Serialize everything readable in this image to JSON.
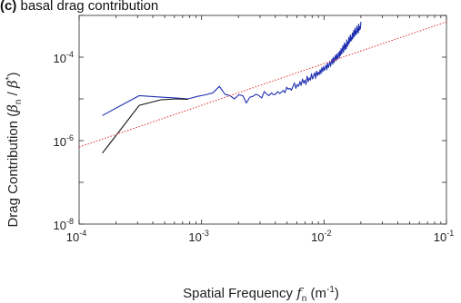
{
  "panel": {
    "title_letter": "(c)",
    "title_text": " basal drag contribution"
  },
  "chart_data": {
    "type": "line",
    "title": "(c) basal drag contribution",
    "xlabel": "Spatial Frequency f_n (m^-1)",
    "ylabel": "Drag Contribution (β_n / β*)",
    "xscale": "log",
    "yscale": "log",
    "xlim": [
      0.0001,
      0.1
    ],
    "ylim": [
      1e-08,
      0.001
    ],
    "grid": false,
    "legend": "none",
    "x_ticks": [
      {
        "mant": "10",
        "exp": "-4"
      },
      {
        "mant": "10",
        "exp": "-3"
      },
      {
        "mant": "10",
        "exp": "-2"
      },
      {
        "mant": "10",
        "exp": "-1"
      }
    ],
    "y_ticks": [
      {
        "mant": "10",
        "exp": "-8"
      },
      {
        "mant": "10",
        "exp": "-6"
      },
      {
        "mant": "10",
        "exp": "-4"
      }
    ],
    "series": [
      {
        "color": "#1f2fb0",
        "style": "solid",
        "x": [
          0.000155,
          0.00031,
          0.000465,
          0.00062,
          0.000775,
          0.00093,
          0.00108,
          0.00124,
          0.0014,
          0.00155,
          0.0017,
          0.00186,
          0.00201,
          0.00217,
          0.00232,
          0.00248,
          0.00263,
          0.00279,
          0.00294,
          0.0031,
          0.00325,
          0.00341,
          0.00356,
          0.00372,
          0.00387,
          0.00403,
          0.00418,
          0.00434,
          0.00449,
          0.00465,
          0.0048,
          0.00496,
          0.00511,
          0.00527,
          0.00542,
          0.00558,
          0.00573,
          0.00589,
          0.00604,
          0.0062,
          0.00635,
          0.00651,
          0.00666,
          0.00682,
          0.00697,
          0.00713,
          0.00728,
          0.00744,
          0.00759,
          0.00775,
          0.0079,
          0.00806,
          0.00821,
          0.00837,
          0.00852,
          0.00868,
          0.00883,
          0.00899,
          0.00914,
          0.0093,
          0.00945,
          0.00961,
          0.00976,
          0.00992,
          0.01007,
          0.01023,
          0.01038,
          0.01054,
          0.01069,
          0.01085,
          0.011,
          0.01116,
          0.01131,
          0.01147,
          0.01162,
          0.01178,
          0.01193,
          0.01209,
          0.01224,
          0.0124,
          0.01255,
          0.01271,
          0.01286,
          0.01302,
          0.01317,
          0.01333,
          0.01348,
          0.01364,
          0.01379,
          0.01395,
          0.0141,
          0.01426,
          0.01441,
          0.01457,
          0.01472,
          0.01488,
          0.01503,
          0.01519,
          0.01534,
          0.0155,
          0.01565,
          0.01581,
          0.01596,
          0.01612,
          0.01627,
          0.01643,
          0.01658,
          0.01674,
          0.01689,
          0.01705,
          0.0172,
          0.01736,
          0.01751,
          0.01767,
          0.01782,
          0.01798,
          0.01813,
          0.01829,
          0.01844,
          0.0186,
          0.01875,
          0.01891,
          0.01906,
          0.01922,
          0.01937,
          0.01953,
          0.01968,
          0.01984,
          0.02
        ],
        "y": [
          4e-06,
          1.2e-05,
          1.1e-05,
          1.05e-05,
          1e-05,
          1.15e-05,
          1.25e-05,
          1.4e-05,
          2e-05,
          1.3e-05,
          1.2e-05,
          1e-05,
          1.25e-05,
          1.2e-05,
          8e-06,
          1.1e-05,
          1.15e-05,
          1.3e-05,
          1.2e-05,
          1.05e-05,
          1.5e-05,
          1.3e-05,
          1.2e-05,
          1.4e-05,
          1.25e-05,
          1.3e-05,
          1.5e-05,
          1.35e-05,
          1.45e-05,
          1.6e-05,
          1.4e-05,
          1.9e-05,
          1.7e-05,
          1.8e-05,
          1.6e-05,
          2e-05,
          2.4e-05,
          1.8e-05,
          2.2e-05,
          2e-05,
          2.6e-05,
          2.1e-05,
          3e-05,
          2.4e-05,
          2.8e-05,
          2.2e-05,
          3.5e-05,
          2.6e-05,
          3.2e-05,
          2.8e-05,
          4e-05,
          3e-05,
          3.6e-05,
          4.2e-05,
          3.1e-05,
          4.6e-05,
          3.6e-05,
          4.4e-05,
          3.8e-05,
          5e-05,
          4e-05,
          5.6e-05,
          4.5e-05,
          6e-05,
          4.8e-05,
          5.5e-05,
          6.4e-05,
          5e-05,
          7.2e-05,
          5.6e-05,
          6.6e-05,
          8e-05,
          6e-05,
          7.6e-05,
          9e-05,
          6.8e-05,
          0.0001,
          7.4e-05,
          9.4e-05,
          0.00011,
          8.2e-05,
          0.00012,
          9e-05,
          0.000106,
          0.00013,
          9.6e-05,
          0.00014,
          0.00011,
          0.00016,
          0.00012,
          0.00015,
          0.00019,
          0.00013,
          0.00017,
          0.00022,
          0.00015,
          0.0002,
          0.00016,
          0.00026,
          0.00018,
          0.00023,
          0.0002,
          0.0003,
          0.00022,
          0.00026,
          0.00034,
          0.00024,
          0.0003,
          0.00026,
          0.00038,
          0.00028,
          0.00034,
          0.00044,
          0.00031,
          0.00038,
          0.0005,
          0.00034,
          0.00042,
          0.00036,
          0.00056,
          0.0004,
          0.00048,
          0.00038,
          0.00062,
          0.00044,
          0.00054,
          0.00046,
          0.0005,
          0.0007
        ]
      },
      {
        "color": "#111111",
        "style": "solid",
        "x": [
          0.000155,
          0.00031,
          0.000465,
          0.00062,
          0.000775
        ],
        "y": [
          5e-07,
          7e-06,
          9.5e-06,
          1e-05,
          9.8e-06
        ]
      },
      {
        "color": "#e0302a",
        "style": "dotted",
        "x": [
          0.0001,
          0.1
        ],
        "y": [
          7e-07,
          0.0007
        ]
      }
    ]
  }
}
